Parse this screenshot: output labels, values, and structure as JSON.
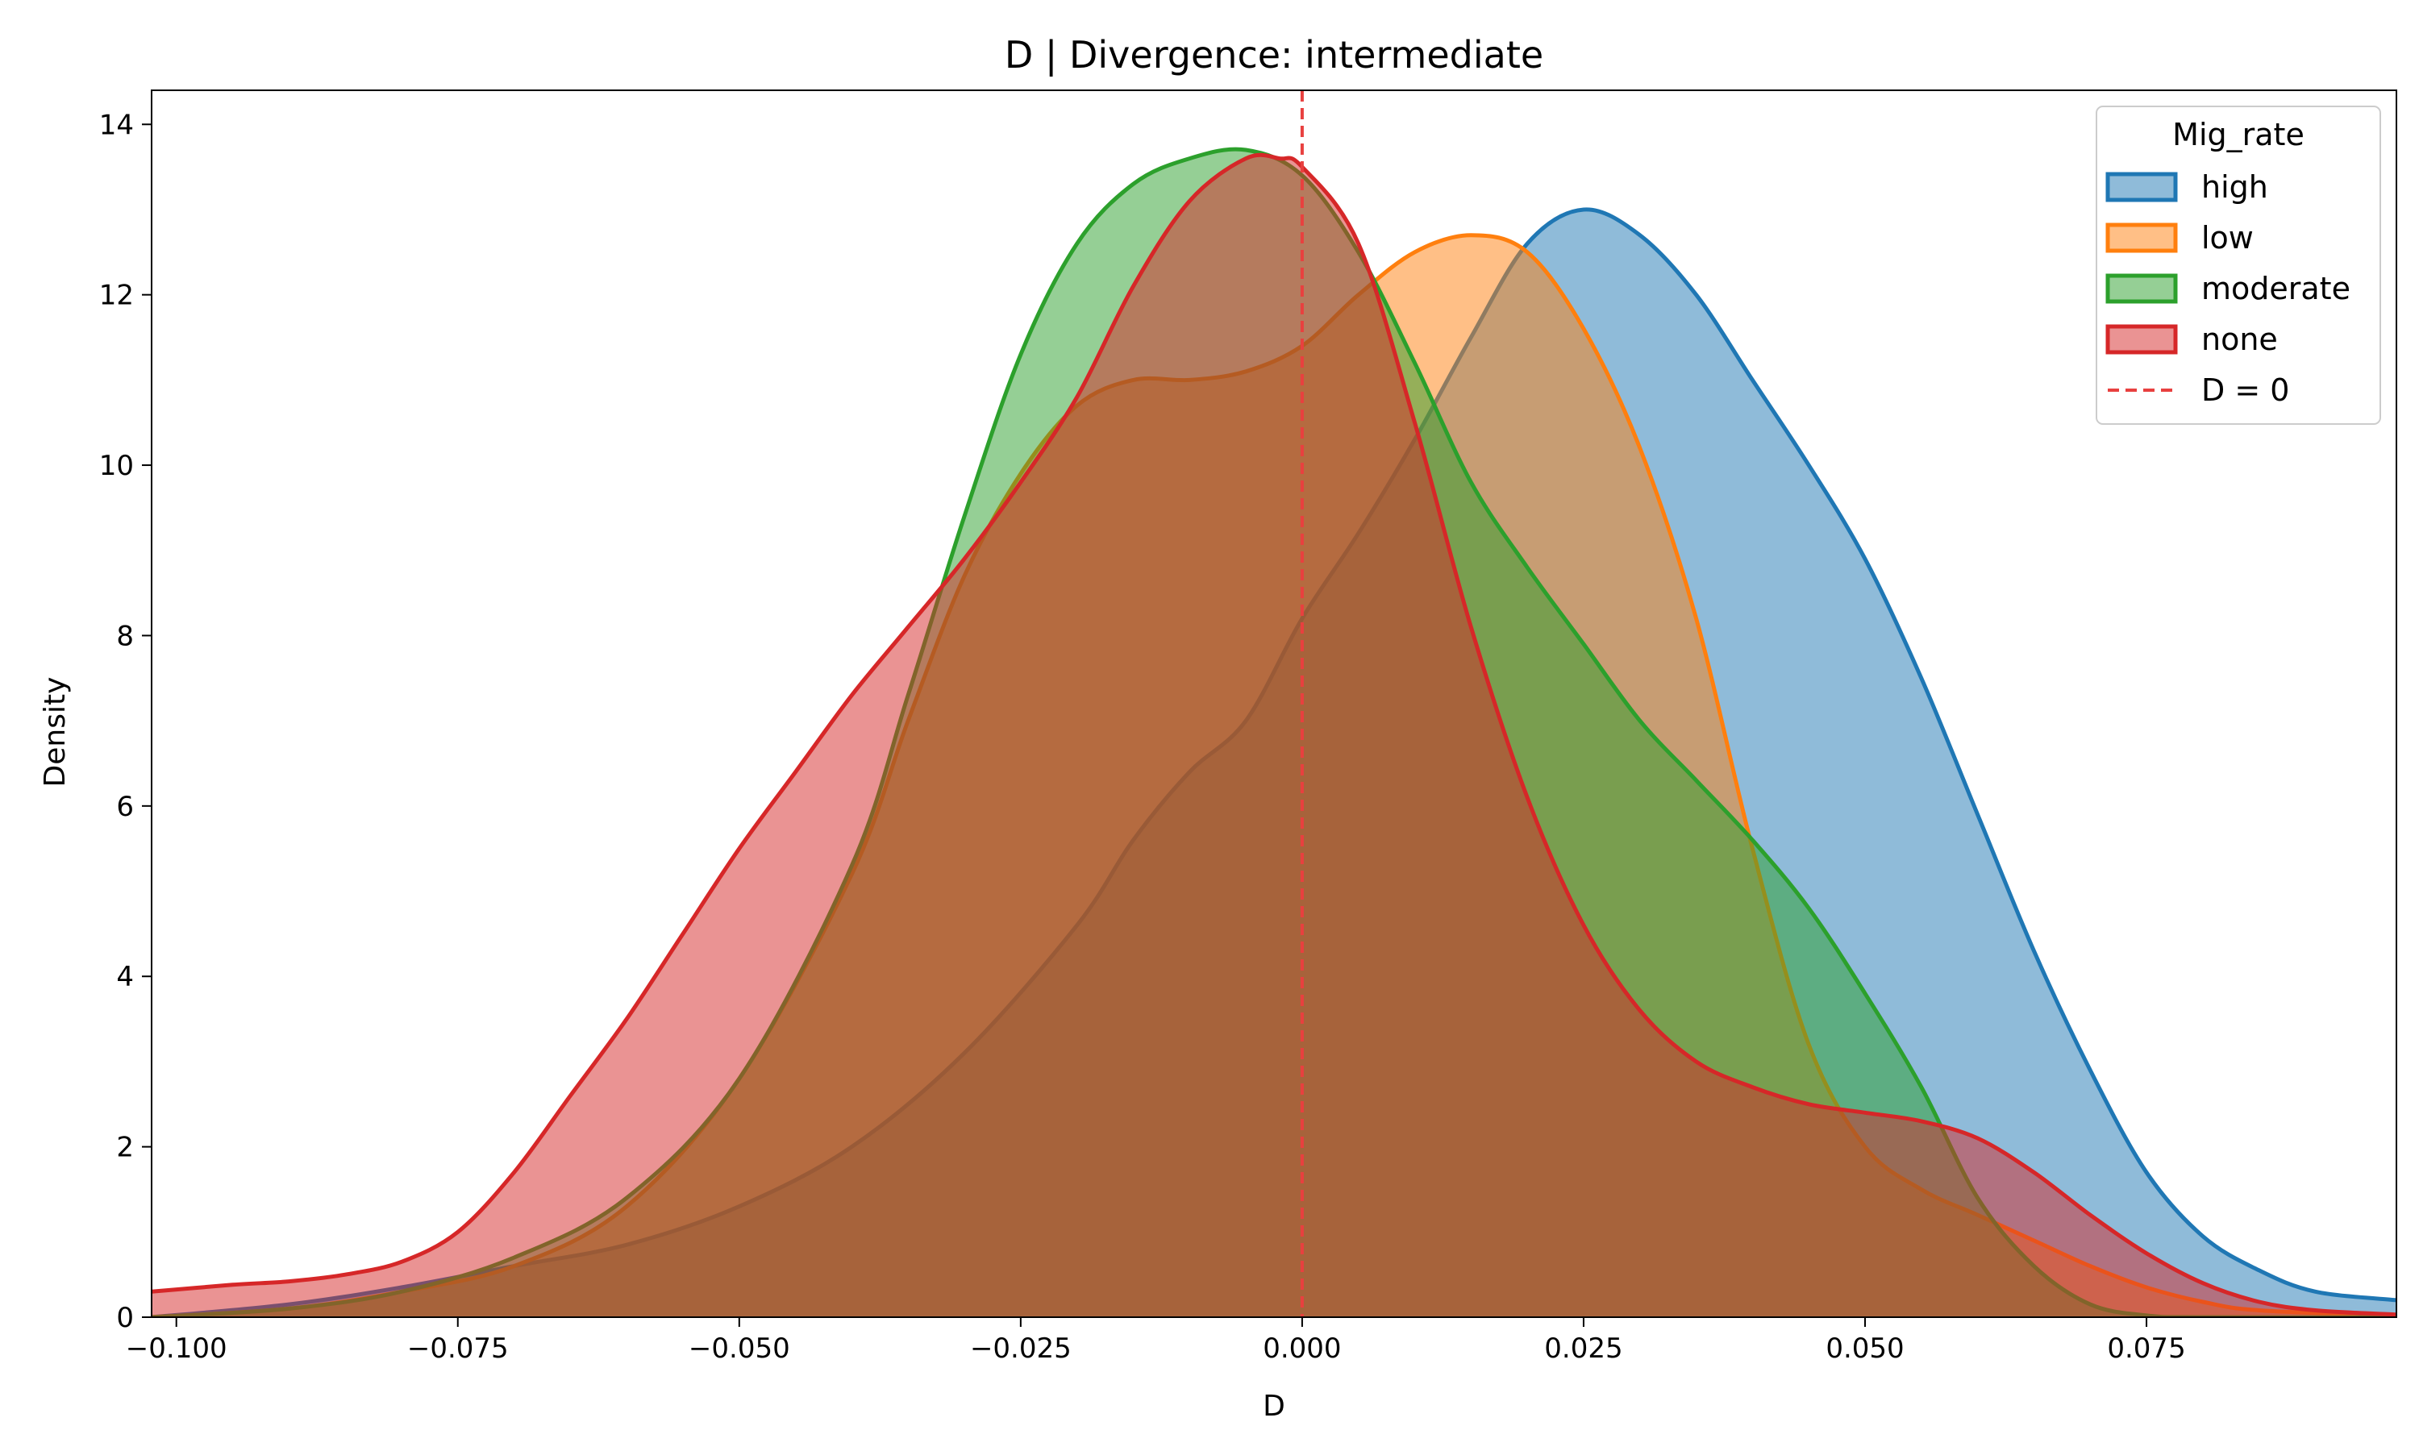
{
  "chart_data": {
    "type": "area",
    "title": "D | Divergence: intermediate",
    "xlabel": "D",
    "ylabel": "Density",
    "xlim": [
      -0.1022,
      0.0972
    ],
    "ylim": [
      0,
      14.4
    ],
    "xticks": [
      -0.1,
      -0.075,
      -0.05,
      -0.025,
      0.0,
      0.025,
      0.05,
      0.075
    ],
    "xtick_labels": [
      "−0.100",
      "−0.075",
      "−0.050",
      "−0.025",
      "0.000",
      "0.025",
      "0.050",
      "0.075"
    ],
    "yticks": [
      0,
      2,
      4,
      6,
      8,
      10,
      12,
      14
    ],
    "ytick_labels": [
      "0",
      "2",
      "4",
      "6",
      "8",
      "10",
      "12",
      "14"
    ],
    "grid": false,
    "legend": {
      "title": "Mig_rate",
      "placement": "top-right",
      "entries": [
        "high",
        "low",
        "moderate",
        "none",
        "D = 0"
      ]
    },
    "reference_line": {
      "x": 0,
      "label": "D = 0",
      "color": "#e8403f",
      "style": "dashed"
    },
    "series": [
      {
        "name": "high",
        "color": "#1f77b4",
        "fill": "#8fbadb",
        "points": [
          [
            -0.1022,
            0.0
          ],
          [
            -0.09,
            0.15
          ],
          [
            -0.08,
            0.35
          ],
          [
            -0.07,
            0.6
          ],
          [
            -0.06,
            0.85
          ],
          [
            -0.05,
            1.3
          ],
          [
            -0.04,
            2.0
          ],
          [
            -0.03,
            3.1
          ],
          [
            -0.02,
            4.6
          ],
          [
            -0.015,
            5.6
          ],
          [
            -0.01,
            6.4
          ],
          [
            -0.005,
            7.0
          ],
          [
            0.0,
            8.2
          ],
          [
            0.005,
            9.2
          ],
          [
            0.01,
            10.3
          ],
          [
            0.015,
            11.5
          ],
          [
            0.02,
            12.6
          ],
          [
            0.025,
            13.0
          ],
          [
            0.03,
            12.7
          ],
          [
            0.035,
            12.0
          ],
          [
            0.04,
            11.0
          ],
          [
            0.045,
            10.0
          ],
          [
            0.05,
            8.9
          ],
          [
            0.055,
            7.5
          ],
          [
            0.06,
            5.9
          ],
          [
            0.065,
            4.3
          ],
          [
            0.07,
            2.9
          ],
          [
            0.075,
            1.7
          ],
          [
            0.08,
            0.95
          ],
          [
            0.085,
            0.55
          ],
          [
            0.09,
            0.3
          ],
          [
            0.0972,
            0.2
          ]
        ]
      },
      {
        "name": "low",
        "color": "#ff7f0e",
        "fill": "#ffbb86",
        "points": [
          [
            -0.1022,
            0.0
          ],
          [
            -0.09,
            0.1
          ],
          [
            -0.08,
            0.3
          ],
          [
            -0.07,
            0.6
          ],
          [
            -0.06,
            1.3
          ],
          [
            -0.05,
            2.8
          ],
          [
            -0.04,
            5.2
          ],
          [
            -0.035,
            7.0
          ],
          [
            -0.03,
            8.7
          ],
          [
            -0.025,
            9.9
          ],
          [
            -0.02,
            10.7
          ],
          [
            -0.015,
            11.0
          ],
          [
            -0.01,
            11.0
          ],
          [
            -0.005,
            11.1
          ],
          [
            0.0,
            11.4
          ],
          [
            0.005,
            12.0
          ],
          [
            0.01,
            12.5
          ],
          [
            0.015,
            12.7
          ],
          [
            0.02,
            12.5
          ],
          [
            0.025,
            11.6
          ],
          [
            0.03,
            10.2
          ],
          [
            0.035,
            8.2
          ],
          [
            0.04,
            5.5
          ],
          [
            0.045,
            3.2
          ],
          [
            0.05,
            2.0
          ],
          [
            0.055,
            1.5
          ],
          [
            0.06,
            1.2
          ],
          [
            0.065,
            0.9
          ],
          [
            0.07,
            0.6
          ],
          [
            0.075,
            0.35
          ],
          [
            0.08,
            0.18
          ],
          [
            0.085,
            0.08
          ],
          [
            0.0972,
            0.02
          ]
        ]
      },
      {
        "name": "moderate",
        "color": "#2ca02c",
        "fill": "#97d091",
        "points": [
          [
            -0.1022,
            0.0
          ],
          [
            -0.09,
            0.1
          ],
          [
            -0.08,
            0.3
          ],
          [
            -0.07,
            0.7
          ],
          [
            -0.06,
            1.4
          ],
          [
            -0.05,
            2.8
          ],
          [
            -0.04,
            5.3
          ],
          [
            -0.035,
            7.3
          ],
          [
            -0.03,
            9.4
          ],
          [
            -0.025,
            11.3
          ],
          [
            -0.02,
            12.6
          ],
          [
            -0.015,
            13.3
          ],
          [
            -0.01,
            13.6
          ],
          [
            -0.005,
            13.7
          ],
          [
            0.0,
            13.4
          ],
          [
            0.005,
            12.5
          ],
          [
            0.01,
            11.2
          ],
          [
            0.015,
            9.8
          ],
          [
            0.02,
            8.8
          ],
          [
            0.025,
            7.9
          ],
          [
            0.03,
            7.0
          ],
          [
            0.035,
            6.3
          ],
          [
            0.04,
            5.6
          ],
          [
            0.045,
            4.8
          ],
          [
            0.05,
            3.8
          ],
          [
            0.055,
            2.7
          ],
          [
            0.06,
            1.4
          ],
          [
            0.065,
            0.6
          ],
          [
            0.07,
            0.15
          ],
          [
            0.075,
            0.02
          ],
          [
            0.08,
            0.0
          ],
          [
            0.0972,
            0.0
          ]
        ]
      },
      {
        "name": "none",
        "color": "#d62728",
        "fill": "#e99191",
        "points": [
          [
            -0.1022,
            0.3
          ],
          [
            -0.095,
            0.38
          ],
          [
            -0.09,
            0.42
          ],
          [
            -0.085,
            0.5
          ],
          [
            -0.08,
            0.65
          ],
          [
            -0.075,
            1.0
          ],
          [
            -0.07,
            1.7
          ],
          [
            -0.065,
            2.6
          ],
          [
            -0.06,
            3.5
          ],
          [
            -0.055,
            4.5
          ],
          [
            -0.05,
            5.5
          ],
          [
            -0.045,
            6.4
          ],
          [
            -0.04,
            7.3
          ],
          [
            -0.035,
            8.1
          ],
          [
            -0.03,
            8.9
          ],
          [
            -0.025,
            9.8
          ],
          [
            -0.02,
            10.8
          ],
          [
            -0.015,
            12.1
          ],
          [
            -0.01,
            13.1
          ],
          [
            -0.005,
            13.6
          ],
          [
            -0.002,
            13.6
          ],
          [
            0.0,
            13.5
          ],
          [
            0.005,
            12.6
          ],
          [
            0.01,
            10.5
          ],
          [
            0.015,
            8.1
          ],
          [
            0.02,
            6.1
          ],
          [
            0.025,
            4.6
          ],
          [
            0.03,
            3.6
          ],
          [
            0.035,
            3.0
          ],
          [
            0.04,
            2.7
          ],
          [
            0.045,
            2.5
          ],
          [
            0.05,
            2.4
          ],
          [
            0.055,
            2.3
          ],
          [
            0.06,
            2.1
          ],
          [
            0.065,
            1.7
          ],
          [
            0.07,
            1.2
          ],
          [
            0.075,
            0.75
          ],
          [
            0.08,
            0.4
          ],
          [
            0.085,
            0.18
          ],
          [
            0.09,
            0.08
          ],
          [
            0.0972,
            0.03
          ]
        ]
      }
    ]
  }
}
